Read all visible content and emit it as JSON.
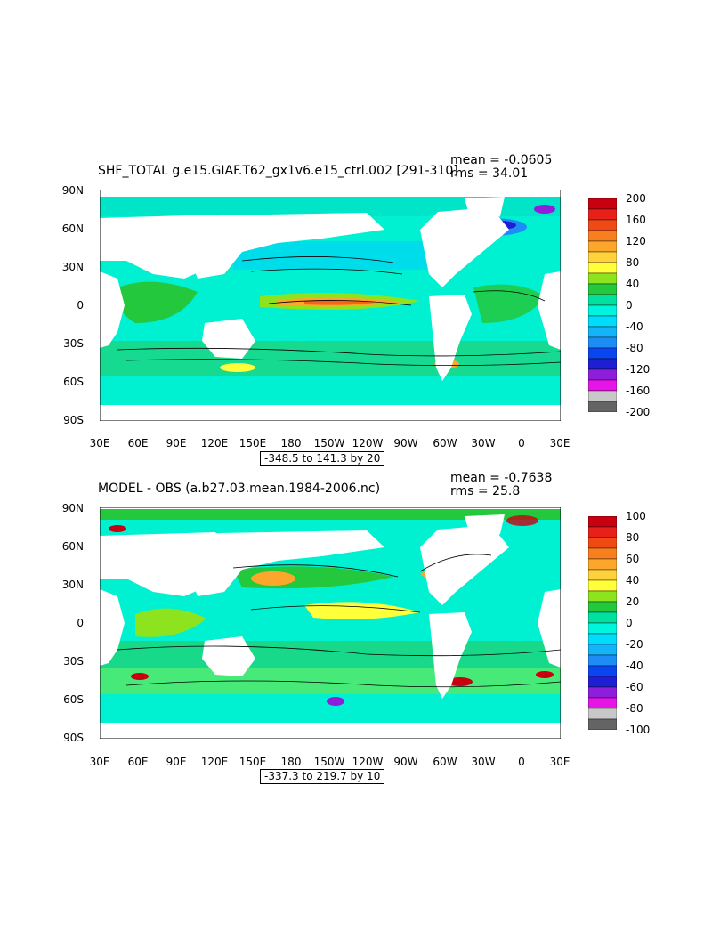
{
  "panels": [
    {
      "title": "SHF_TOTAL g.e15.GIAF.T62_gx1v6.e15_ctrl.002 [291-310]",
      "mean_text": "mean = -0.0605",
      "rms_text": "rms = 34.01",
      "range_text": "-348.5 to 141.3 by 20",
      "colorbar": {
        "labels": [
          "200",
          "160",
          "120",
          "80",
          "40",
          "0",
          "-40",
          "-80",
          "-120",
          "-160",
          "-200"
        ],
        "colors": [
          "#c8000f",
          "#e8201a",
          "#f04a14",
          "#f77f1e",
          "#fca72c",
          "#ffd23c",
          "#ffff3a",
          "#8de41e",
          "#23c83c",
          "#00e1a0",
          "#00f5dc",
          "#00dcfa",
          "#14b4fa",
          "#1e8cf5",
          "#0a46f0",
          "#1e1ed2",
          "#8c1edc",
          "#e614e6",
          "#c8c8c8",
          "#646464"
        ]
      }
    },
    {
      "title": "MODEL - OBS (a.b27.03.mean.1984-2006.nc)",
      "mean_text": "mean = -0.7638",
      "rms_text": "rms = 25.8",
      "range_text": "-337.3 to 219.7 by 10",
      "colorbar": {
        "labels": [
          "100",
          "80",
          "60",
          "40",
          "20",
          "0",
          "-20",
          "-40",
          "-60",
          "-80",
          "-100"
        ],
        "colors": [
          "#c8000f",
          "#e8201a",
          "#f04a14",
          "#f77f1e",
          "#fca72c",
          "#ffd23c",
          "#ffff3a",
          "#8de41e",
          "#23c83c",
          "#00e1a0",
          "#00f5dc",
          "#00dcfa",
          "#14b4fa",
          "#1e8cf5",
          "#0a46f0",
          "#1e1ed2",
          "#8c1edc",
          "#e614e6",
          "#c8c8c8",
          "#646464"
        ]
      }
    }
  ],
  "lat_labels": [
    "90N",
    "60N",
    "30N",
    "0",
    "30S",
    "60S",
    "90S"
  ],
  "lon_labels": [
    "30E",
    "60E",
    "90E",
    "120E",
    "150E",
    "180",
    "150W",
    "120W",
    "90W",
    "60W",
    "30W",
    "0",
    "30E"
  ]
}
